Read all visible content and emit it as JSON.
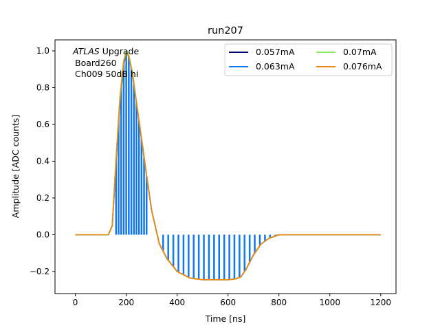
{
  "chart_data": {
    "type": "line",
    "title": "run207",
    "xlabel": "Time [ns]",
    "ylabel": "Amplitude [ADC counts]",
    "xlim": [
      -80,
      1260
    ],
    "ylim": [
      -0.32,
      1.06
    ],
    "xticks": [
      0,
      200,
      400,
      600,
      800,
      1000,
      1200
    ],
    "yticks": [
      -0.2,
      0.0,
      0.2,
      0.4,
      0.6,
      0.8,
      1.0
    ],
    "ytick_labels": [
      "−0.2",
      "0.0",
      "0.2",
      "0.4",
      "0.6",
      "0.8",
      "1.0"
    ],
    "grid": false,
    "legend": {
      "placement": "top-right",
      "columns": 2
    },
    "annotation": {
      "italic": "ATLAS",
      "rest": " Upgrade",
      "line2": "Board260",
      "line3": "Ch009 50dB hi"
    },
    "series": [
      {
        "name": "0.057mA",
        "color": "#00006e",
        "x": [
          0,
          130,
          145,
          160,
          175,
          190,
          200,
          210,
          225,
          240,
          260,
          280,
          300,
          330,
          360,
          400,
          450,
          500,
          550,
          600,
          630,
          650,
          670,
          700,
          730,
          760,
          800,
          850,
          900,
          1000,
          1100,
          1200
        ],
        "y": [
          0.0,
          0.0,
          0.05,
          0.4,
          0.72,
          0.93,
          0.99,
          0.97,
          0.87,
          0.72,
          0.52,
          0.32,
          0.13,
          -0.05,
          -0.13,
          -0.2,
          -0.235,
          -0.245,
          -0.245,
          -0.245,
          -0.24,
          -0.23,
          -0.19,
          -0.11,
          -0.05,
          -0.02,
          0.0,
          0.0,
          0.0,
          0.0,
          0.0,
          0.0
        ]
      },
      {
        "name": "0.063mA",
        "color": "#1177ee",
        "x": [
          0,
          130,
          145,
          160,
          175,
          190,
          200,
          210,
          225,
          240,
          260,
          280,
          300,
          330,
          360,
          400,
          450,
          500,
          550,
          600,
          630,
          650,
          670,
          700,
          730,
          760,
          800,
          850,
          900,
          1000,
          1100,
          1200
        ],
        "y": [
          0.0,
          0.0,
          0.05,
          0.41,
          0.73,
          0.94,
          0.99,
          0.97,
          0.87,
          0.72,
          0.52,
          0.32,
          0.13,
          -0.05,
          -0.13,
          -0.2,
          -0.235,
          -0.245,
          -0.245,
          -0.245,
          -0.24,
          -0.23,
          -0.19,
          -0.11,
          -0.05,
          -0.02,
          0.0,
          0.0,
          0.0,
          0.0,
          0.0,
          0.0
        ],
        "drop_x": [
          160,
          170,
          180,
          190,
          200,
          210,
          220,
          230,
          240,
          250,
          260,
          270,
          280,
          345,
          365,
          385,
          405,
          425,
          445,
          465,
          485,
          505,
          525,
          545,
          565,
          585,
          605,
          625,
          645,
          665,
          685,
          705,
          725,
          745,
          765,
          785,
          805,
          825,
          865,
          905,
          945,
          985,
          1025,
          1065,
          1105,
          1145,
          1185
        ]
      },
      {
        "name": "0.07mA",
        "color": "#88ee66",
        "x": [
          0,
          130,
          145,
          160,
          175,
          190,
          200,
          210,
          225,
          240,
          260,
          280,
          300,
          330,
          360,
          400,
          450,
          500,
          550,
          600,
          630,
          650,
          670,
          700,
          730,
          760,
          800,
          850,
          900,
          1000,
          1100,
          1200
        ],
        "y": [
          0.0,
          0.0,
          0.05,
          0.42,
          0.75,
          0.95,
          1.0,
          0.98,
          0.88,
          0.73,
          0.52,
          0.32,
          0.13,
          -0.05,
          -0.13,
          -0.2,
          -0.235,
          -0.245,
          -0.245,
          -0.245,
          -0.24,
          -0.23,
          -0.19,
          -0.11,
          -0.05,
          -0.02,
          0.0,
          0.0,
          0.0,
          0.0,
          0.0,
          0.0
        ]
      },
      {
        "name": "0.076mA",
        "color": "#ee8811",
        "x": [
          0,
          130,
          145,
          160,
          175,
          190,
          200,
          210,
          225,
          240,
          260,
          280,
          300,
          330,
          360,
          400,
          450,
          500,
          550,
          600,
          630,
          650,
          670,
          700,
          730,
          760,
          800,
          850,
          900,
          1000,
          1100,
          1200
        ],
        "y": [
          0.0,
          0.0,
          0.05,
          0.4,
          0.73,
          0.94,
          0.99,
          0.97,
          0.87,
          0.72,
          0.52,
          0.32,
          0.13,
          -0.05,
          -0.13,
          -0.2,
          -0.235,
          -0.245,
          -0.245,
          -0.245,
          -0.24,
          -0.23,
          -0.19,
          -0.11,
          -0.05,
          -0.02,
          0.0,
          0.0,
          0.0,
          0.0,
          0.0,
          0.0
        ]
      }
    ]
  }
}
